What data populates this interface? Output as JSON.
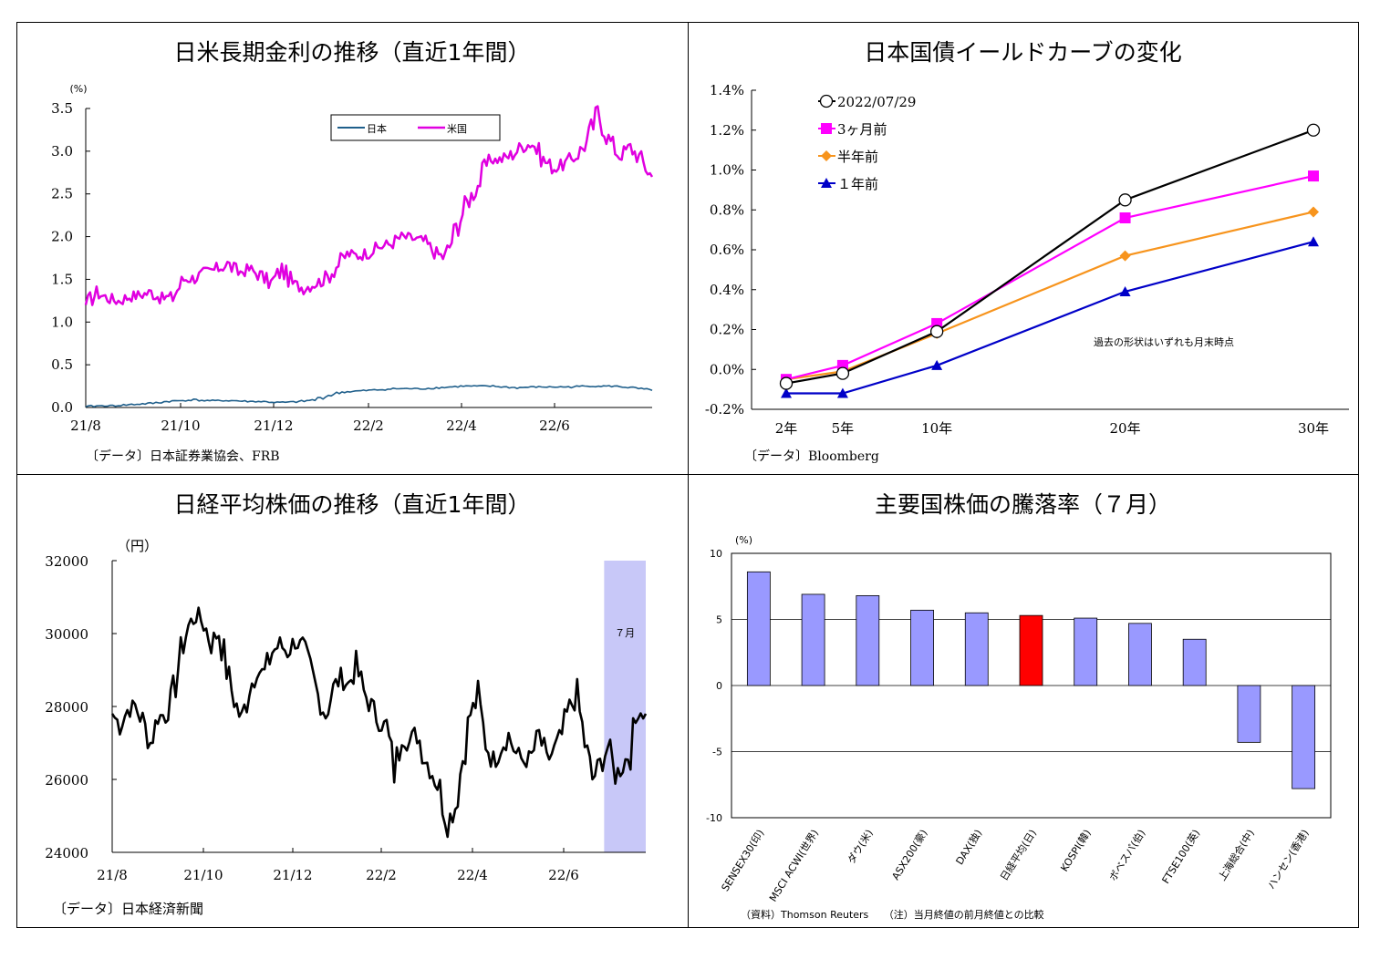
{
  "chart_data": [
    {
      "type": "line",
      "title": "日米長期金利の推移（直近1年間）",
      "ylabel": "(%)",
      "ylim": [
        0,
        3.5
      ],
      "yticks": [
        "0.0",
        "0.5",
        "1.0",
        "1.5",
        "2.0",
        "2.5",
        "3.0",
        "3.5"
      ],
      "xticks": [
        "21/8",
        "21/10",
        "21/12",
        "22/2",
        "22/4",
        "22/6"
      ],
      "legend": {
        "placement": "top-right"
      },
      "source": "〔データ〕日本証券業協会、FRB",
      "series": [
        {
          "name": "日本",
          "color": "#1f5f8b",
          "values": [
            0.01,
            0.02,
            0.02,
            0.03,
            0.04,
            0.05,
            0.07,
            0.08,
            0.09,
            0.08,
            0.08,
            0.08,
            0.07,
            0.07,
            0.06,
            0.06,
            0.07,
            0.09,
            0.14,
            0.18,
            0.19,
            0.2,
            0.21,
            0.22,
            0.22,
            0.22,
            0.23,
            0.24,
            0.25,
            0.25,
            0.25,
            0.24,
            0.23,
            0.24,
            0.24,
            0.24,
            0.24,
            0.25,
            0.25,
            0.25,
            0.24,
            0.22,
            0.2
          ]
        },
        {
          "name": "米国",
          "color": "#e000e0",
          "values": [
            1.2,
            1.35,
            1.28,
            1.25,
            1.3,
            1.32,
            1.35,
            1.28,
            1.3,
            1.5,
            1.52,
            1.58,
            1.62,
            1.68,
            1.58,
            1.62,
            1.55,
            1.45,
            1.62,
            1.45,
            1.4,
            1.45,
            1.5,
            1.65,
            1.8,
            1.78,
            1.82,
            1.88,
            1.92,
            2.0,
            1.98,
            1.95,
            1.82,
            1.75,
            2.1,
            2.4,
            2.6,
            2.9,
            2.9,
            2.95,
            3.05,
            3.1,
            2.9,
            2.8,
            2.85,
            2.95,
            3.1,
            3.45,
            3.15,
            2.95,
            3.05,
            2.9,
            2.7
          ]
        }
      ]
    },
    {
      "type": "line",
      "title": "日本国債イールドカーブの変化",
      "ylim": [
        -0.2,
        1.4
      ],
      "yticks": [
        "-0.2%",
        "0.0%",
        "0.2%",
        "0.4%",
        "0.6%",
        "0.8%",
        "1.0%",
        "1.2%",
        "1.4%"
      ],
      "categories": [
        "2年",
        "5年",
        "10年",
        "20年",
        "30年"
      ],
      "x": [
        2,
        5,
        10,
        20,
        30
      ],
      "annotation": "過去の形状はいずれも月末時点",
      "legend": {
        "placement": "top-left"
      },
      "source": "〔データ〕Bloomberg",
      "series": [
        {
          "name": "2022/07/29",
          "color": "#000000",
          "marker": "circle-open",
          "values": [
            -0.07,
            -0.02,
            0.19,
            0.85,
            1.2
          ]
        },
        {
          "name": "3ヶ月前",
          "color": "#ff00ff",
          "marker": "square",
          "values": [
            -0.05,
            0.02,
            0.23,
            0.76,
            0.97
          ]
        },
        {
          "name": "半年前",
          "color": "#f7941d",
          "marker": "diamond",
          "values": [
            -0.05,
            -0.01,
            0.18,
            0.57,
            0.79
          ]
        },
        {
          "name": "１年前",
          "color": "#0000c8",
          "marker": "triangle",
          "values": [
            -0.12,
            -0.12,
            0.02,
            0.39,
            0.64
          ]
        }
      ]
    },
    {
      "type": "line",
      "title": "日経平均株価の推移（直近1年間）",
      "ylabel": "（円）",
      "ylim": [
        24000,
        32000
      ],
      "yticks": [
        "24000",
        "26000",
        "28000",
        "30000",
        "32000"
      ],
      "xticks": [
        "21/8",
        "21/10",
        "21/12",
        "22/2",
        "22/4",
        "22/6"
      ],
      "highlight": {
        "label": "７月",
        "color": "#c8c8f8",
        "from": 0.922,
        "to": 1.0
      },
      "source": "〔データ〕日本経済新聞",
      "series": [
        {
          "name": "日経平均",
          "color": "#000000",
          "values": [
            27800,
            27500,
            27900,
            28000,
            27600,
            27000,
            27700,
            27800,
            28300,
            29500,
            30200,
            30500,
            30300,
            29700,
            30100,
            29000,
            28200,
            27600,
            28500,
            29000,
            28900,
            29500,
            29700,
            29500,
            29800,
            29600,
            29000,
            28300,
            27800,
            28500,
            28800,
            28600,
            29100,
            28400,
            28000,
            27600,
            27400,
            26200,
            27200,
            27000,
            27300,
            26600,
            26200,
            25700,
            24800,
            25300,
            26600,
            27800,
            28200,
            27000,
            26500,
            26900,
            27200,
            26700,
            26500,
            26600,
            27200,
            26500,
            26800,
            27200,
            28000,
            28200,
            27000,
            26000,
            26400,
            26900,
            26100,
            26400,
            26800,
            27900,
            27800
          ]
        }
      ]
    },
    {
      "type": "bar",
      "title": "主要国株価の騰落率（７月）",
      "ylabel": "(%)",
      "ylim": [
        -10,
        10
      ],
      "yticks": [
        "10",
        "5",
        "0",
        "-5",
        "-10"
      ],
      "categories": [
        "SENSEX30(印)",
        "MSCI ACWI(世界)",
        "ダウ(米)",
        "ASX200(豪)",
        "DAX(独)",
        "日経平均(日)",
        "KOSPI(韓)",
        "ボベスパ(伯)",
        "FTSE100(英)",
        "上海総合(中)",
        "ハンセン(香港)"
      ],
      "values": [
        8.6,
        6.9,
        6.8,
        5.7,
        5.5,
        5.3,
        5.1,
        4.7,
        3.5,
        -4.3,
        -7.8
      ],
      "colors": {
        "default": "#9999ff",
        "highlight": "#ff0000"
      },
      "highlight_index": 5,
      "source": "（資料）Thomson Reuters　　（注）当月終値の前月終値との比較"
    }
  ]
}
